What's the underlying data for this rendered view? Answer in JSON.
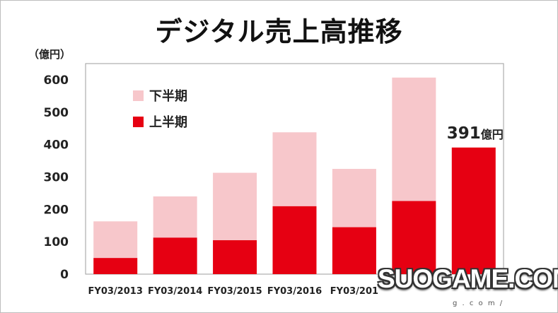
{
  "title": "デジタル売上高推移",
  "unit_label": "（億円）",
  "watermark": {
    "brand": "SUOGAME.COM",
    "sub": "g . c o m /"
  },
  "colors": {
    "second_half": "#f7c7cb",
    "first_half": "#e60012",
    "axis": "#9e9e9e"
  },
  "chart_data": {
    "type": "bar",
    "stacked": true,
    "categories": [
      "FY03/2013",
      "FY03/2014",
      "FY03/2015",
      "FY03/2016",
      "FY03/201",
      "",
      ""
    ],
    "series": [
      {
        "name": "上半期",
        "values": [
          50,
          113,
          105,
          210,
          145,
          226,
          391
        ]
      },
      {
        "name": "下半期",
        "values": [
          113,
          127,
          208,
          228,
          180,
          381,
          0
        ]
      }
    ],
    "ylim": [
      0,
      600
    ],
    "yticks": [
      0,
      100,
      200,
      300,
      400,
      500,
      600
    ],
    "ylabel": "（億円）",
    "annotation": {
      "value": "391",
      "unit": "億円"
    },
    "legend": [
      "下半期",
      "上半期"
    ],
    "legend_position": "top-left"
  }
}
